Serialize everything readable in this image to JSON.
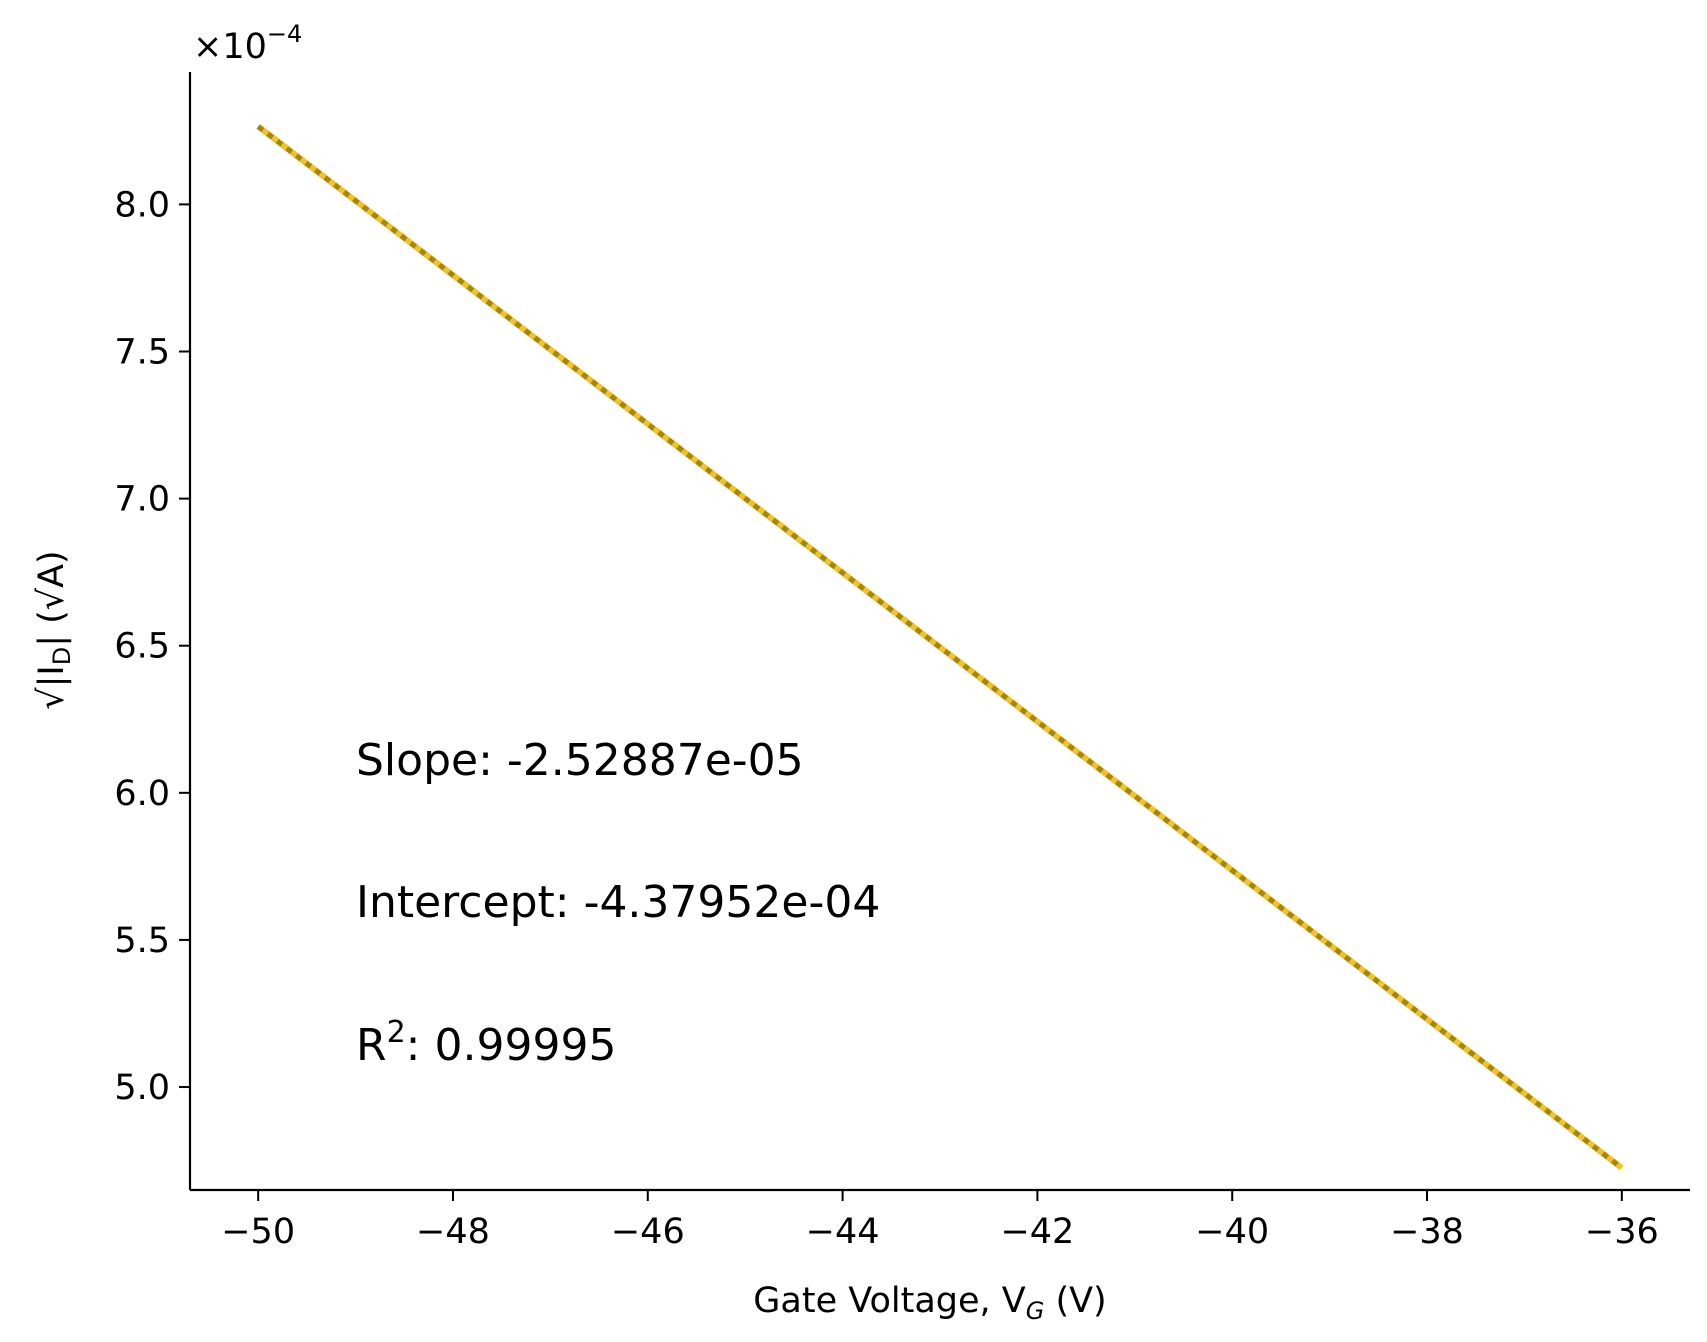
{
  "chart_data": {
    "type": "line",
    "title": "",
    "xlabel": "Gate Voltage, V",
    "xlabel_sub": "G",
    "xlabel_unit": " (V)",
    "ylabel": "√|I",
    "ylabel_sub": "D",
    "ylabel_unit": "| (√A)",
    "y_multiplier_base": "×10",
    "y_multiplier_exp": "−4",
    "xlim": [
      -50.7,
      -35.3
    ],
    "ylim": [
      4.65,
      8.45
    ],
    "x_ticks": [
      -50,
      -48,
      -46,
      -44,
      -42,
      -40,
      -38,
      -36
    ],
    "x_tick_labels": [
      "−50",
      "−48",
      "−46",
      "−44",
      "−42",
      "−40",
      "−38",
      "−36"
    ],
    "y_ticks": [
      5.0,
      5.5,
      6.0,
      6.5,
      7.0,
      7.5,
      8.0
    ],
    "y_tick_labels": [
      "5.0",
      "5.5",
      "6.0",
      "6.5",
      "7.0",
      "7.5",
      "8.0"
    ],
    "grid": false,
    "series": [
      {
        "x": [
          -50,
          -36
        ],
        "y": [
          8.265,
          4.725
        ],
        "color": "#f2c12e",
        "style": "solid"
      },
      {
        "x": [
          -50,
          -36
        ],
        "y": [
          8.265,
          4.725
        ],
        "color": "#a3870b",
        "style": "dotted"
      }
    ],
    "annotations": {
      "slope": "Slope: -2.52887e-05",
      "intercept": "Intercept: -4.37952e-04",
      "r2_label": "R",
      "r2_exp": "2",
      "r2_value": ": 0.99995"
    }
  }
}
